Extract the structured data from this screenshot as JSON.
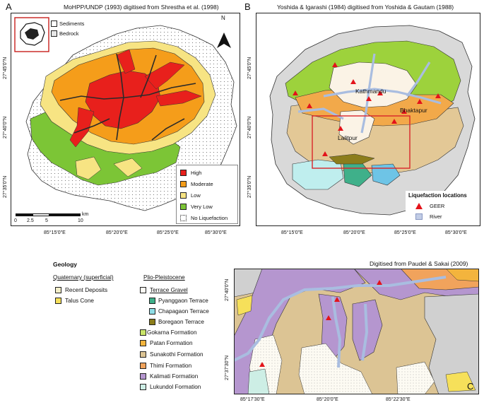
{
  "panel_a": {
    "letter": "A",
    "source": "MoHPP/UNDP (1993) digitised from Shrestha et al. (1998)",
    "north": "N",
    "inset_legend": [
      "Sediments",
      "Bedrock"
    ],
    "legend": [
      "High",
      "Moderate",
      "Low",
      "Very Low",
      "No Liquefaction"
    ],
    "legend_colors": [
      "#e8201c",
      "#f59d1a",
      "#f7e483",
      "#7cc536",
      "#ffffff"
    ],
    "scale": {
      "unit": "km",
      "labels": [
        "0",
        "2.5",
        "5",
        "10"
      ]
    },
    "lon_ticks": [
      "85°15'0\"E",
      "85°20'0\"E",
      "85°25'0\"E",
      "85°30'0\"E"
    ],
    "lat_ticks": [
      "27°45'0\"N",
      "27°40'0\"N",
      "27°35'0\"N"
    ]
  },
  "panel_b": {
    "letter": "B",
    "source": "Yoshida & Igarashi (1984) digitised from Yoshida & Gautam (1988)",
    "places": [
      "Kathmandu",
      "Bhaktapur",
      "Lalitpur"
    ],
    "legend_title": "Liquefaction locations",
    "legend": [
      "GEER",
      "River"
    ],
    "lon_ticks": [
      "85°15'0\"E",
      "85°20'0\"E",
      "85°25'0\"E",
      "85°30'0\"E"
    ],
    "lat_ticks": [
      "27°45'0\"N",
      "27°40'0\"N",
      "27°35'0\"N"
    ]
  },
  "geology": {
    "title": "Geology",
    "quaternary_head": "Quaternary (superficial)",
    "quaternary": [
      {
        "label": "Recent Deposits",
        "color": "#f4efc9"
      },
      {
        "label": "Talus Cone",
        "color": "#f6e05a"
      }
    ],
    "plio_head": "Plio-Pleistocene",
    "terrace_head": "Terrace Gravel",
    "terrace_color": "#fdfbf3",
    "terraces": [
      {
        "label": "Pyanggaon Terrace",
        "color": "#3fb08a"
      },
      {
        "label": "Chapagaon Terrace",
        "color": "#8fdde6"
      },
      {
        "label": "Boregaon Terrace",
        "color": "#8c7d1b"
      }
    ],
    "formations": [
      {
        "label": "Gokarna Formation",
        "color": "#c9e46a"
      },
      {
        "label": "Patan Formation",
        "color": "#f3b43d"
      },
      {
        "label": "Sunakothi Formation",
        "color": "#dcc494"
      },
      {
        "label": "Thimi Formation",
        "color": "#f1a35c"
      },
      {
        "label": "Kalimati Formation",
        "color": "#b596cf"
      },
      {
        "label": "Lukundol Formation",
        "color": "#cdeee5"
      }
    ]
  },
  "panel_c": {
    "letter": "C",
    "source": "Digitised from Paudel & Sakai (2009)",
    "lon_ticks": [
      "85°17'30\"E",
      "85°20'0\"E",
      "85°22'30\"E"
    ],
    "lat_ticks": [
      "27°40'0\"N",
      "27°37'30\"N"
    ]
  }
}
